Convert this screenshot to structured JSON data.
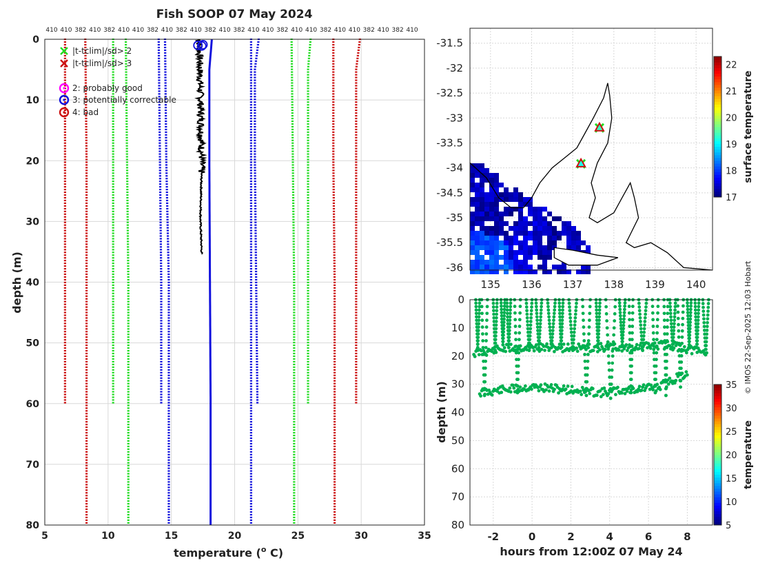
{
  "title": "Fish SOOP 07 May 2024",
  "credit": "© IMOS 22-Sep-2025 12:03 Hobart",
  "colors": {
    "red": "#cc1111",
    "green": "#22dd22",
    "blue": "#1111dd",
    "black": "#000000",
    "magenta": "#ff00ff",
    "timeseries": "#00b050",
    "grid": "#d8d8d8"
  },
  "chart_data": [
    {
      "type": "line",
      "id": "profile",
      "xlabel_main": "temperature (",
      "xlabel_sup": "o",
      "xlabel_tail": " C)",
      "ylabel": "depth (m)",
      "xlim": [
        5,
        35
      ],
      "ylim": [
        80,
        0
      ],
      "x_ticks": [
        5,
        10,
        15,
        20,
        25,
        30,
        35
      ],
      "y_ticks": [
        0,
        10,
        20,
        30,
        40,
        50,
        60,
        70,
        80
      ],
      "grid": true,
      "top_labels": [
        "410",
        "410",
        "382",
        "410",
        "382",
        "410",
        "410",
        "382",
        "410",
        "382",
        "410",
        "382",
        "410",
        "382",
        "410",
        "410",
        "382",
        "410",
        "410",
        "382",
        "410",
        "410",
        "382",
        "410",
        "382",
        "410"
      ],
      "legend": {
        "position": "top-left",
        "entries": [
          {
            "label": "|t-tclim|/sd> 2",
            "marker": "x",
            "color": "green"
          },
          {
            "label": "|t-tclim|/sd> 3",
            "marker": "x",
            "color": "red"
          },
          {
            "label": "2: probably good",
            "marker": "o",
            "color": "magenta"
          },
          {
            "label": "3: potentially correctable",
            "marker": "o",
            "color": "blue"
          },
          {
            "label": "4: bad",
            "marker": "o",
            "color": "red"
          }
        ]
      },
      "climatology_lines": [
        {
          "color": "red",
          "style": "dotted",
          "x": [
            6.6,
            6.6,
            6.6,
            6.6
          ],
          "y": [
            0,
            20,
            40,
            60
          ]
        },
        {
          "color": "red",
          "style": "dotted",
          "x": [
            8.2,
            8.3,
            8.3,
            8.3,
            8.3
          ],
          "y": [
            0,
            20,
            40,
            60,
            80
          ]
        },
        {
          "color": "green",
          "style": "dotted",
          "x": [
            10.4,
            10.4,
            10.4,
            10.4
          ],
          "y": [
            0,
            20,
            40,
            60
          ]
        },
        {
          "color": "green",
          "style": "dotted",
          "x": [
            11.4,
            11.5,
            11.6,
            11.6,
            11.6
          ],
          "y": [
            0,
            20,
            40,
            60,
            80
          ]
        },
        {
          "color": "blue",
          "style": "dotted",
          "x": [
            14.0,
            14.1,
            14.2,
            14.2
          ],
          "y": [
            0,
            20,
            40,
            60
          ]
        },
        {
          "color": "blue",
          "style": "dotted",
          "x": [
            14.5,
            14.6,
            14.8,
            14.8,
            14.8
          ],
          "y": [
            0,
            20,
            40,
            60,
            80
          ]
        },
        {
          "color": "blue",
          "style": "dotted",
          "x": [
            21.9,
            21.6,
            21.6,
            21.7,
            21.8
          ],
          "y": [
            0,
            5,
            20,
            40,
            60
          ]
        },
        {
          "color": "blue",
          "style": "dotted",
          "x": [
            21.3,
            21.3,
            21.3,
            21.3,
            21.3
          ],
          "y": [
            0,
            20,
            40,
            60,
            80
          ]
        },
        {
          "color": "green",
          "style": "dotted",
          "x": [
            26.0,
            25.8,
            25.8,
            25.8
          ],
          "y": [
            0,
            5,
            40,
            60
          ]
        },
        {
          "color": "green",
          "style": "dotted",
          "x": [
            24.5,
            24.6,
            24.7,
            24.7,
            24.7
          ],
          "y": [
            0,
            20,
            40,
            60,
            80
          ]
        },
        {
          "color": "red",
          "style": "dotted",
          "x": [
            29.9,
            29.6,
            29.6,
            29.6,
            29.6
          ],
          "y": [
            0,
            5,
            20,
            40,
            60
          ]
        },
        {
          "color": "red",
          "style": "dotted",
          "x": [
            27.8,
            27.8,
            27.9,
            27.9,
            27.9
          ],
          "y": [
            0,
            20,
            40,
            60,
            80
          ]
        }
      ],
      "profiles": [
        {
          "color": "blue",
          "x": [
            18.2,
            18.0,
            18.0,
            18.1,
            18.1
          ],
          "y": [
            0,
            5,
            20,
            60,
            80
          ]
        },
        {
          "color": "black",
          "x": [
            17.2,
            17.3,
            17.4,
            17.3,
            17.4
          ],
          "y": [
            0,
            10,
            20,
            30,
            35.5
          ]
        }
      ],
      "flag_markers": [
        {
          "color": "blue",
          "x": 17.1,
          "y": 1
        },
        {
          "color": "blue",
          "x": 17.5,
          "y": 0.9
        },
        {
          "color": "blue",
          "x": 17.4,
          "y": 1.1
        }
      ]
    },
    {
      "type": "heatmap",
      "id": "sst_map",
      "xlim": [
        134.5,
        140.4
      ],
      "ylim": [
        -36.05,
        -31.2
      ],
      "x_ticks": [
        135,
        136,
        137,
        138,
        139,
        140
      ],
      "y_ticks": [
        -31.5,
        -32,
        -32.5,
        -33,
        -33.5,
        -34,
        -34.5,
        -35,
        -35.5,
        -36
      ],
      "grid": true,
      "colorbar": {
        "label": "surface temperature",
        "range": [
          17,
          22.3
        ],
        "ticks": [
          17,
          18,
          19,
          20,
          21,
          22
        ]
      },
      "profile_locations": [
        {
          "lon": 137.65,
          "lat": -33.2,
          "temp": 19.3
        },
        {
          "lon": 137.2,
          "lat": -33.92,
          "temp": 19.1
        }
      ],
      "sst_blobs": [
        {
          "lon": 134.75,
          "lat": -34.4,
          "temp": 17.2
        },
        {
          "lon": 135.3,
          "lat": -34.85,
          "temp": 17.1
        },
        {
          "lon": 135.9,
          "lat": -35.0,
          "temp": 17.3
        },
        {
          "lon": 136.4,
          "lat": -35.5,
          "temp": 17.1
        },
        {
          "lon": 136.9,
          "lat": -35.6,
          "temp": 17.2
        },
        {
          "lon": 135.8,
          "lat": -35.55,
          "temp": 17.4
        },
        {
          "lon": 135.0,
          "lat": -35.9,
          "temp": 18.0
        }
      ]
    },
    {
      "type": "scatter",
      "id": "timeseries",
      "xlabel": "hours from 12:00Z 07 May 24",
      "ylabel": "depth (m)",
      "xlim": [
        -3.2,
        9.3
      ],
      "ylim": [
        80,
        0
      ],
      "x_ticks": [
        -2,
        0,
        2,
        4,
        6,
        8
      ],
      "y_ticks": [
        0,
        10,
        20,
        30,
        40,
        50,
        60,
        70,
        80
      ],
      "grid": true,
      "colorbar": {
        "label": "temperature",
        "range": [
          5,
          35
        ],
        "ticks": [
          5,
          10,
          15,
          20,
          25,
          30,
          35
        ]
      },
      "marker_temp": 18,
      "dives": [
        {
          "t0": -2.9,
          "t1": -2.7,
          "max_depth": 17
        },
        {
          "t0": -2.6,
          "t1": -2.3,
          "max_depth": 34
        },
        {
          "t0": -2.0,
          "t1": -1.8,
          "max_depth": 18
        },
        {
          "t0": -1.6,
          "t1": -1.4,
          "max_depth": 16
        },
        {
          "t0": -1.3,
          "t1": -1.1,
          "max_depth": 17
        },
        {
          "t0": -0.9,
          "t1": -0.6,
          "max_depth": 33
        },
        {
          "t0": -0.3,
          "t1": 0.0,
          "max_depth": 18
        },
        {
          "t0": 0.2,
          "t1": 0.5,
          "max_depth": 17
        },
        {
          "t0": 0.8,
          "t1": 1.2,
          "max_depth": 17
        },
        {
          "t0": 1.4,
          "t1": 1.6,
          "max_depth": 17
        },
        {
          "t0": 1.9,
          "t1": 2.3,
          "max_depth": 18
        },
        {
          "t0": 2.6,
          "t1": 3.0,
          "max_depth": 34
        },
        {
          "t0": 3.3,
          "t1": 3.5,
          "max_depth": 17
        },
        {
          "t0": 3.8,
          "t1": 4.3,
          "max_depth": 35
        },
        {
          "t0": 4.5,
          "t1": 4.8,
          "max_depth": 16
        },
        {
          "t0": 5.0,
          "t1": 5.2,
          "max_depth": 33
        },
        {
          "t0": 5.5,
          "t1": 5.9,
          "max_depth": 18
        },
        {
          "t0": 6.2,
          "t1": 6.5,
          "max_depth": 33
        },
        {
          "t0": 6.8,
          "t1": 7.0,
          "max_depth": 34
        },
        {
          "t0": 7.1,
          "t1": 7.4,
          "max_depth": 17
        },
        {
          "t0": 7.5,
          "t1": 7.8,
          "max_depth": 31
        },
        {
          "t0": 8.0,
          "t1": 8.2,
          "max_depth": 16
        },
        {
          "t0": 8.4,
          "t1": 8.6,
          "max_depth": 17
        },
        {
          "t0": 8.8,
          "t1": 9.1,
          "max_depth": 19
        }
      ],
      "shallow_band": {
        "t": [
          -3.0,
          -1.0,
          1.0,
          3.0,
          5.0,
          7.0,
          9.0
        ],
        "depth": [
          19,
          17,
          17,
          17,
          17,
          16,
          19
        ]
      },
      "deep_band": {
        "t": [
          -2.7,
          -1.5,
          0.0,
          2.0,
          3.5,
          5.0,
          6.5,
          8.0
        ],
        "depth": [
          33,
          32,
          31,
          32,
          33,
          32,
          31,
          26
        ]
      }
    }
  ]
}
